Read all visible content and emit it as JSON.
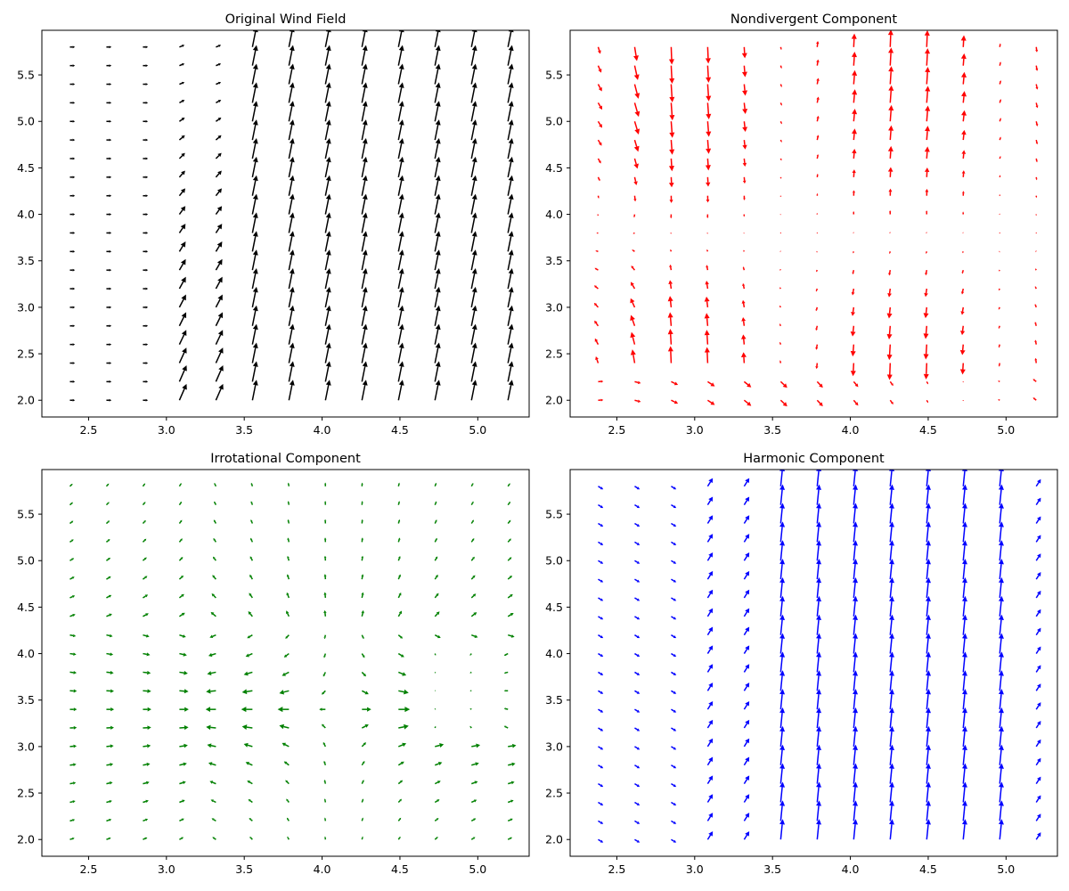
{
  "figure": {
    "background": "#ffffff"
  },
  "chart_data": [
    {
      "type": "quiver",
      "title": "Original Wind Field",
      "color": "#000000",
      "field": "original",
      "xlim": [
        2.2,
        5.33
      ],
      "ylim": [
        1.82,
        5.98
      ],
      "xticks": [
        2.5,
        3.0,
        3.5,
        4.0,
        4.5,
        5.0
      ],
      "xtick_labels": [
        "2.5",
        "3.0",
        "3.5",
        "4.0",
        "4.5",
        "5.0"
      ],
      "yticks": [
        2.0,
        2.5,
        3.0,
        3.5,
        4.0,
        4.5,
        5.0,
        5.5
      ],
      "ytick_labels": [
        "2.0",
        "2.5",
        "3.0",
        "3.5",
        "4.0",
        "4.5",
        "5.0",
        "5.5"
      ],
      "grid": {
        "x_start": 2.38,
        "x_step": 0.2345,
        "nx": 13,
        "y_start": 2.0,
        "y_step": 0.2,
        "ny": 20
      }
    },
    {
      "type": "quiver",
      "title": "Nondivergent Component",
      "color": "#ff0000",
      "field": "nondivergent",
      "xlim": [
        2.2,
        5.33
      ],
      "ylim": [
        1.82,
        5.98
      ],
      "xticks": [
        2.5,
        3.0,
        3.5,
        4.0,
        4.5,
        5.0
      ],
      "xtick_labels": [
        "2.5",
        "3.0",
        "3.5",
        "4.0",
        "4.5",
        "5.0"
      ],
      "yticks": [
        2.0,
        2.5,
        3.0,
        3.5,
        4.0,
        4.5,
        5.0,
        5.5
      ],
      "ytick_labels": [
        "2.0",
        "2.5",
        "3.0",
        "3.5",
        "4.0",
        "4.5",
        "5.0",
        "5.5"
      ],
      "grid": {
        "x_start": 2.38,
        "x_step": 0.2345,
        "nx": 13,
        "y_start": 2.0,
        "y_step": 0.2,
        "ny": 20
      }
    },
    {
      "type": "quiver",
      "title": "Irrotational Component",
      "color": "#008000",
      "field": "irrotational",
      "xlim": [
        2.2,
        5.33
      ],
      "ylim": [
        1.82,
        5.98
      ],
      "xticks": [
        2.5,
        3.0,
        3.5,
        4.0,
        4.5,
        5.0
      ],
      "xtick_labels": [
        "2.5",
        "3.0",
        "3.5",
        "4.0",
        "4.5",
        "5.0"
      ],
      "yticks": [
        2.0,
        2.5,
        3.0,
        3.5,
        4.0,
        4.5,
        5.0,
        5.5
      ],
      "ytick_labels": [
        "2.0",
        "2.5",
        "3.0",
        "3.5",
        "4.0",
        "4.5",
        "5.0",
        "5.5"
      ],
      "grid": {
        "x_start": 2.38,
        "x_step": 0.2345,
        "nx": 13,
        "y_start": 2.0,
        "y_step": 0.2,
        "ny": 20
      }
    },
    {
      "type": "quiver",
      "title": "Harmonic Component",
      "color": "#0000ff",
      "field": "harmonic",
      "xlim": [
        2.2,
        5.33
      ],
      "ylim": [
        1.82,
        5.98
      ],
      "xticks": [
        2.5,
        3.0,
        3.5,
        4.0,
        4.5,
        5.0
      ],
      "xtick_labels": [
        "2.5",
        "3.0",
        "3.5",
        "4.0",
        "4.5",
        "5.0"
      ],
      "yticks": [
        2.0,
        2.5,
        3.0,
        3.5,
        4.0,
        4.5,
        5.0,
        5.5
      ],
      "ytick_labels": [
        "2.0",
        "2.5",
        "3.0",
        "3.5",
        "4.0",
        "4.5",
        "5.0",
        "5.5"
      ],
      "grid": {
        "x_start": 2.38,
        "x_step": 0.2345,
        "nx": 13,
        "y_start": 2.0,
        "y_step": 0.2,
        "ny": 20
      }
    }
  ]
}
